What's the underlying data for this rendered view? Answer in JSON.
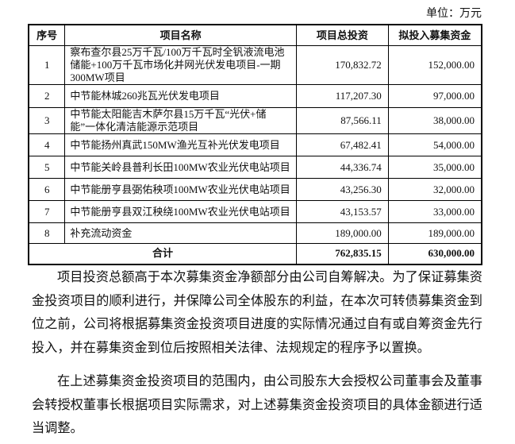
{
  "unit_label": "单位：万元",
  "table": {
    "headers": [
      "序号",
      "项目名称",
      "项目总投资",
      "拟投入募集资金"
    ],
    "rows": [
      {
        "no": "1",
        "name": "察布查尔县25万千瓦/100万千瓦时全钒液流电池储能+100万千瓦市场化并网光伏发电项目-一期300MW项目",
        "total": "170,832.72",
        "raise": "152,000.00"
      },
      {
        "no": "2",
        "name": "中节能林城260兆瓦光伏发电项目",
        "total": "117,207.30",
        "raise": "97,000.00"
      },
      {
        "no": "3",
        "name": "中节能太阳能吉木萨尔县15万千瓦“光伏+储能”一体化清洁能源示范项目",
        "total": "87,566.11",
        "raise": "38,000.00"
      },
      {
        "no": "4",
        "name": "中节能扬州真武150MW渔光互补光伏发电项目",
        "total": "67,482.41",
        "raise": "54,000.00"
      },
      {
        "no": "5",
        "name": "中节能关岭县普利长田100MW农业光伏电站项目",
        "total": "44,336.74",
        "raise": "35,000.00"
      },
      {
        "no": "6",
        "name": "中节能册亨县弼佑秧项100MW农业光伏电站项目",
        "total": "43,256.30",
        "raise": "32,000.00"
      },
      {
        "no": "7",
        "name": "中节能册亨县双江秧绕100MW农业光伏电站项目",
        "total": "43,153.57",
        "raise": "33,000.00"
      },
      {
        "no": "8",
        "name": "补充流动资金",
        "total": "189,000.00",
        "raise": "189,000.00"
      }
    ],
    "total": {
      "label": "合计",
      "total": "762,835.15",
      "raise": "630,000.00"
    }
  },
  "paragraphs": [
    [
      "项目投资总额高于本次募集资金净额部分由公司自筹解决。为了保证募集资",
      "金投资项目的顺利进行，并保障公司全体股东的利益，在本次可转债募集资金到",
      "位之前，公司将根据募集资金投资项目进度的实际情况通过自有或自筹资金先行",
      "投入，并在募集资金到位后按照相关法律、法规规定的程序予以置换。"
    ],
    [
      "在上述募集资金投资项目的范围内，由公司股东大会授权公司董事会及董事",
      "会转授权董事长根据项目实际需求，对上述募集资金投资项目的具体金额进行适",
      "当调整。"
    ]
  ]
}
